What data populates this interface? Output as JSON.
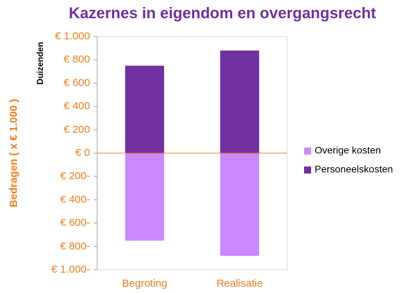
{
  "chart_data": {
    "type": "bar",
    "stacked": true,
    "title": "Kazernes in eigendom en overgangsrecht",
    "y_label": "Bedragen  ( x € 1.000 )",
    "y_unit_label": "Duizenden",
    "categories": [
      "Begroting",
      "Realisatie"
    ],
    "series": [
      {
        "name": "Overige kosten",
        "color": "#cc88ff",
        "values": [
          -750,
          -880
        ]
      },
      {
        "name": "Personeelskosten",
        "color": "#7030a0",
        "values": [
          750,
          880
        ]
      }
    ],
    "ylim": [
      -1000,
      1000
    ],
    "yticks": [
      {
        "value": 1000,
        "label": "€ 1.000"
      },
      {
        "value": 800,
        "label": "€ 800"
      },
      {
        "value": 600,
        "label": "€ 600"
      },
      {
        "value": 400,
        "label": "€ 400"
      },
      {
        "value": 200,
        "label": "€ 200"
      },
      {
        "value": 0,
        "label": "€ 0"
      },
      {
        "value": -200,
        "label": "€ 200-"
      },
      {
        "value": -400,
        "label": "€ 400-"
      },
      {
        "value": -600,
        "label": "€ 600-"
      },
      {
        "value": -800,
        "label": "€ 800-"
      },
      {
        "value": -1000,
        "label": "€ 1.000-"
      }
    ],
    "legend": "right",
    "grid": false
  }
}
